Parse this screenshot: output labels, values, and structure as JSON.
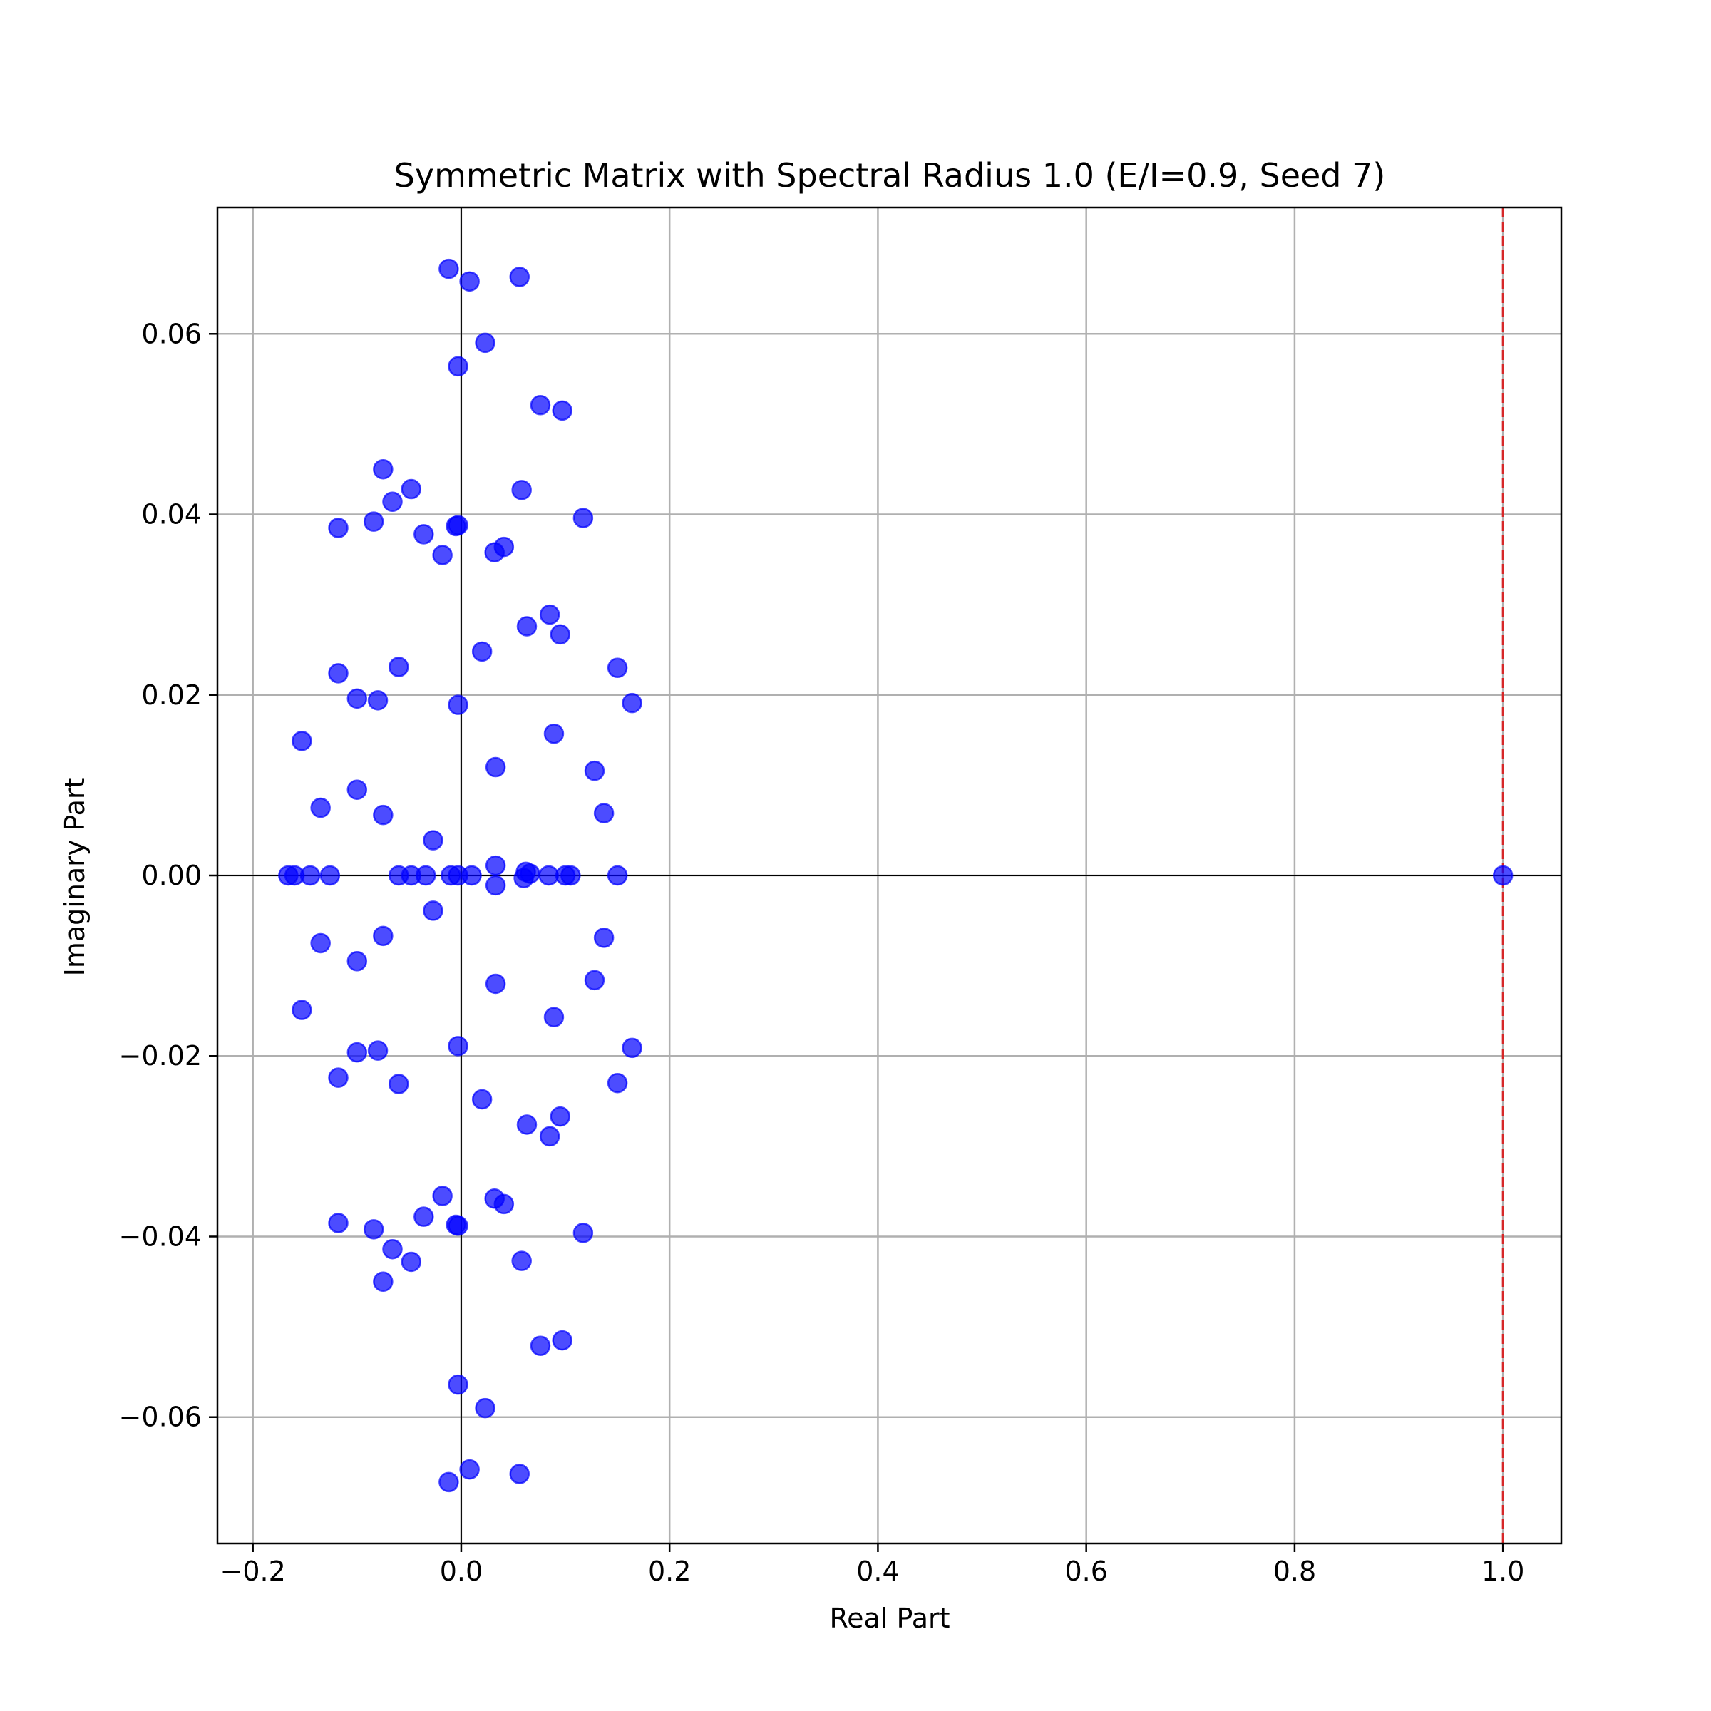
{
  "chart_data": {
    "type": "scatter",
    "title": "Symmetric Matrix with Spectral Radius 1.0 (E/I=0.9, Seed 7)",
    "xlabel": "Real Part",
    "ylabel": "Imaginary Part",
    "xlim": [
      -0.234,
      1.056
    ],
    "ylim": [
      -0.074,
      0.074
    ],
    "xticks": [
      -0.2,
      0.0,
      0.2,
      0.4,
      0.6,
      0.8,
      1.0
    ],
    "xtick_labels": [
      "−0.2",
      "0.0",
      "0.2",
      "0.4",
      "0.6",
      "0.8",
      "1.0"
    ],
    "yticks": [
      -0.06,
      -0.04,
      -0.02,
      0.0,
      0.02,
      0.04,
      0.06
    ],
    "ytick_labels": [
      "−0.06",
      "−0.04",
      "−0.02",
      "0.00",
      "0.02",
      "0.04",
      "0.06"
    ],
    "grid": true,
    "reference_lines": {
      "horizontal_y": 0.0,
      "vertical_x": 0.0,
      "spectral_radius_x": 1.0,
      "spectral_radius_color": "#d62728"
    },
    "marker_color": "#0000ff",
    "marker_alpha": 0.7,
    "points": [
      [
        -0.012,
        0.0672
      ],
      [
        0.008,
        0.0658
      ],
      [
        0.056,
        0.0663
      ],
      [
        0.023,
        0.059
      ],
      [
        -0.003,
        0.0564
      ],
      [
        0.076,
        0.0521
      ],
      [
        0.097,
        0.0515
      ],
      [
        -0.075,
        0.045
      ],
      [
        -0.048,
        0.0428
      ],
      [
        -0.066,
        0.0414
      ],
      [
        0.058,
        0.0427
      ],
      [
        -0.118,
        0.0385
      ],
      [
        -0.084,
        0.0392
      ],
      [
        -0.036,
        0.0378
      ],
      [
        -0.005,
        0.0387
      ],
      [
        -0.003,
        0.0388
      ],
      [
        0.117,
        0.0396
      ],
      [
        -0.018,
        0.0355
      ],
      [
        0.032,
        0.0358
      ],
      [
        0.041,
        0.0364
      ],
      [
        0.085,
        0.0289
      ],
      [
        0.063,
        0.0276
      ],
      [
        0.095,
        0.0267
      ],
      [
        0.02,
        0.0248
      ],
      [
        -0.118,
        0.0224
      ],
      [
        -0.06,
        0.0231
      ],
      [
        0.15,
        0.023
      ],
      [
        -0.1,
        0.0196
      ],
      [
        -0.08,
        0.0194
      ],
      [
        -0.003,
        0.0189
      ],
      [
        0.164,
        0.0191
      ],
      [
        -0.153,
        0.0149
      ],
      [
        0.089,
        0.0157
      ],
      [
        0.033,
        0.012
      ],
      [
        0.128,
        0.0116
      ],
      [
        -0.1,
        0.0095
      ],
      [
        -0.135,
        0.0075
      ],
      [
        -0.075,
        0.0067
      ],
      [
        0.137,
        0.0069
      ],
      [
        -0.027,
        0.0039
      ],
      [
        0.033,
        0.0011
      ],
      [
        -0.166,
        0.0
      ],
      [
        -0.16,
        0.0
      ],
      [
        -0.145,
        0.0
      ],
      [
        -0.126,
        0.0
      ],
      [
        -0.06,
        0.0
      ],
      [
        -0.048,
        0.0
      ],
      [
        -0.034,
        0.0
      ],
      [
        -0.01,
        0.0
      ],
      [
        -0.003,
        0.0
      ],
      [
        0.01,
        0.0
      ],
      [
        0.062,
        0.0004
      ],
      [
        0.066,
        0.0002
      ],
      [
        0.084,
        0.0
      ],
      [
        0.1,
        0.0
      ],
      [
        0.105,
        0.0
      ],
      [
        0.15,
        0.0
      ],
      [
        1.0,
        0.0
      ],
      [
        0.06,
        -0.0003
      ],
      [
        0.033,
        -0.0011
      ],
      [
        -0.027,
        -0.0039
      ],
      [
        -0.135,
        -0.0075
      ],
      [
        -0.075,
        -0.0067
      ],
      [
        0.137,
        -0.0069
      ],
      [
        -0.1,
        -0.0095
      ],
      [
        0.033,
        -0.012
      ],
      [
        0.128,
        -0.0116
      ],
      [
        -0.153,
        -0.0149
      ],
      [
        0.089,
        -0.0157
      ],
      [
        -0.1,
        -0.0196
      ],
      [
        -0.08,
        -0.0194
      ],
      [
        -0.003,
        -0.0189
      ],
      [
        0.164,
        -0.0191
      ],
      [
        -0.118,
        -0.0224
      ],
      [
        -0.06,
        -0.0231
      ],
      [
        0.15,
        -0.023
      ],
      [
        0.02,
        -0.0248
      ],
      [
        0.063,
        -0.0276
      ],
      [
        0.095,
        -0.0267
      ],
      [
        0.085,
        -0.0289
      ],
      [
        -0.018,
        -0.0355
      ],
      [
        0.032,
        -0.0358
      ],
      [
        0.041,
        -0.0364
      ],
      [
        -0.118,
        -0.0385
      ],
      [
        -0.084,
        -0.0392
      ],
      [
        -0.036,
        -0.0378
      ],
      [
        -0.005,
        -0.0387
      ],
      [
        -0.003,
        -0.0388
      ],
      [
        0.117,
        -0.0396
      ],
      [
        -0.066,
        -0.0414
      ],
      [
        -0.048,
        -0.0428
      ],
      [
        0.058,
        -0.0427
      ],
      [
        -0.075,
        -0.045
      ],
      [
        0.076,
        -0.0521
      ],
      [
        0.097,
        -0.0515
      ],
      [
        -0.003,
        -0.0564
      ],
      [
        0.023,
        -0.059
      ],
      [
        -0.012,
        -0.0672
      ],
      [
        0.008,
        -0.0658
      ],
      [
        0.056,
        -0.0663
      ]
    ]
  }
}
